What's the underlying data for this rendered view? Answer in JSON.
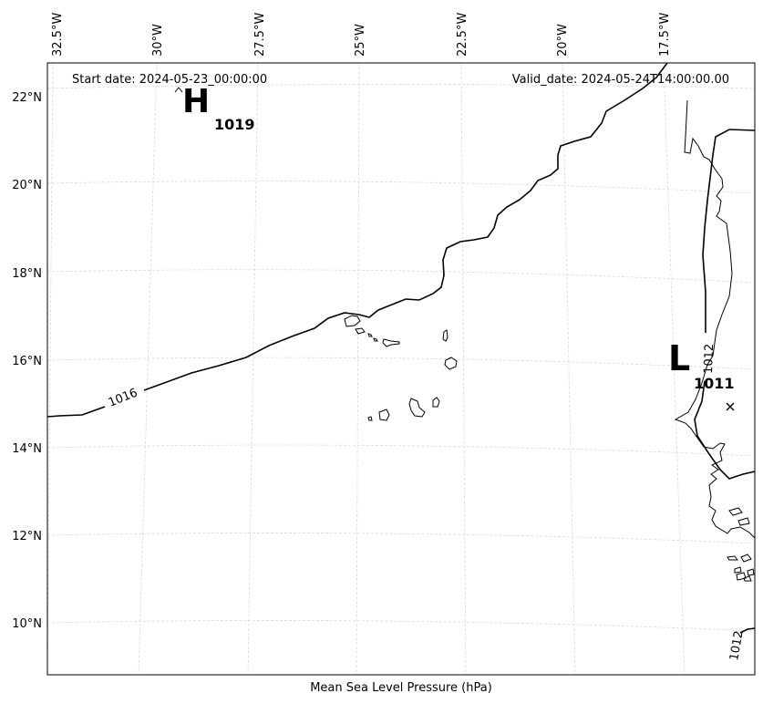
{
  "map": {
    "start_label": "Start date: 2024-05-23_00:00:00",
    "valid_label": "Valid_date: 2024-05-24T14:00:00.00",
    "footer_label": "Mean Sea Level Pressure (hPa)",
    "longitude_labels": [
      "32.5°W",
      "30°W",
      "27.5°W",
      "25°W",
      "22.5°W",
      "20°W",
      "17.5°W"
    ],
    "latitude_labels": [
      "22°N",
      "20°N",
      "18°N",
      "16°N",
      "14°N",
      "12°N",
      "10°N"
    ],
    "high": {
      "letter": "H",
      "value": "1019"
    },
    "low": {
      "letter": "L",
      "value": "1011"
    },
    "isobar_labels": [
      "1016",
      "1012",
      "1012"
    ],
    "colors": {
      "coast": "#000000",
      "grid": "#cccccc",
      "isobar": "#000000"
    }
  }
}
